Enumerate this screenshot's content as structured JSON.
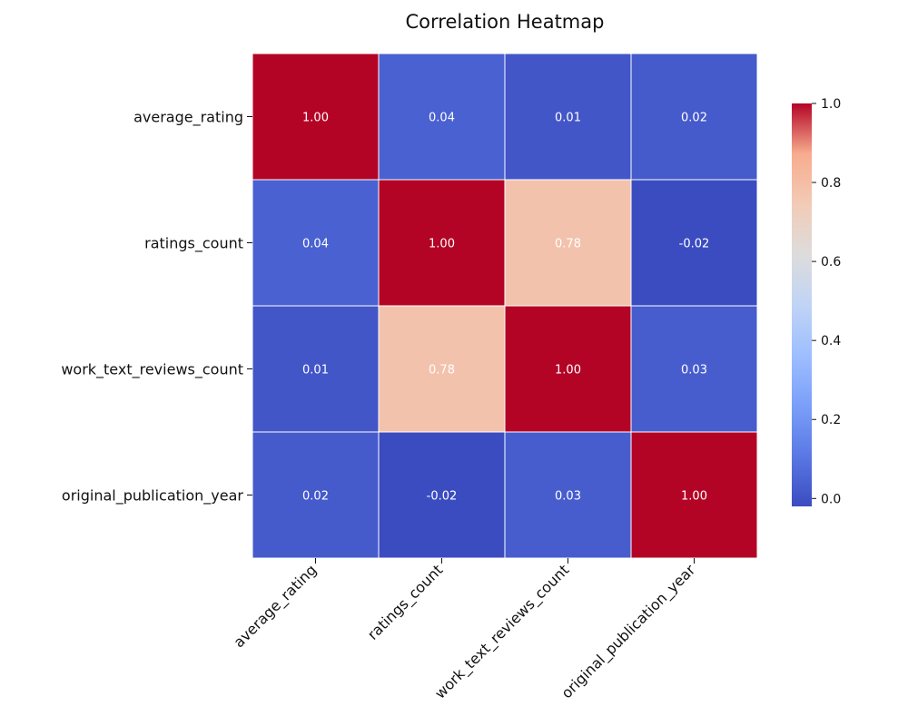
{
  "chart_data": {
    "type": "heatmap",
    "title": "Correlation Heatmap",
    "rows": [
      "average_rating",
      "ratings_count",
      "work_text_reviews_count",
      "original_publication_year"
    ],
    "columns": [
      "average_rating",
      "ratings_count",
      "work_text_reviews_count",
      "original_publication_year"
    ],
    "values": [
      [
        1.0,
        0.04,
        0.01,
        0.02
      ],
      [
        0.04,
        1.0,
        0.78,
        -0.02
      ],
      [
        0.01,
        0.78,
        1.0,
        0.03
      ],
      [
        0.02,
        -0.02,
        0.03,
        1.0
      ]
    ],
    "value_format": "0.00",
    "colormap": "coolwarm",
    "colorbar": {
      "min": -0.02,
      "max": 1.0,
      "ticks": [
        "0.0",
        "0.2",
        "0.4",
        "0.6",
        "0.8",
        "1.0"
      ],
      "tick_values": [
        0.0,
        0.2,
        0.4,
        0.6,
        0.8,
        1.0
      ],
      "placement": "right"
    },
    "grid_line_color": "#ffffff",
    "xtick_rotation_deg": -45
  }
}
